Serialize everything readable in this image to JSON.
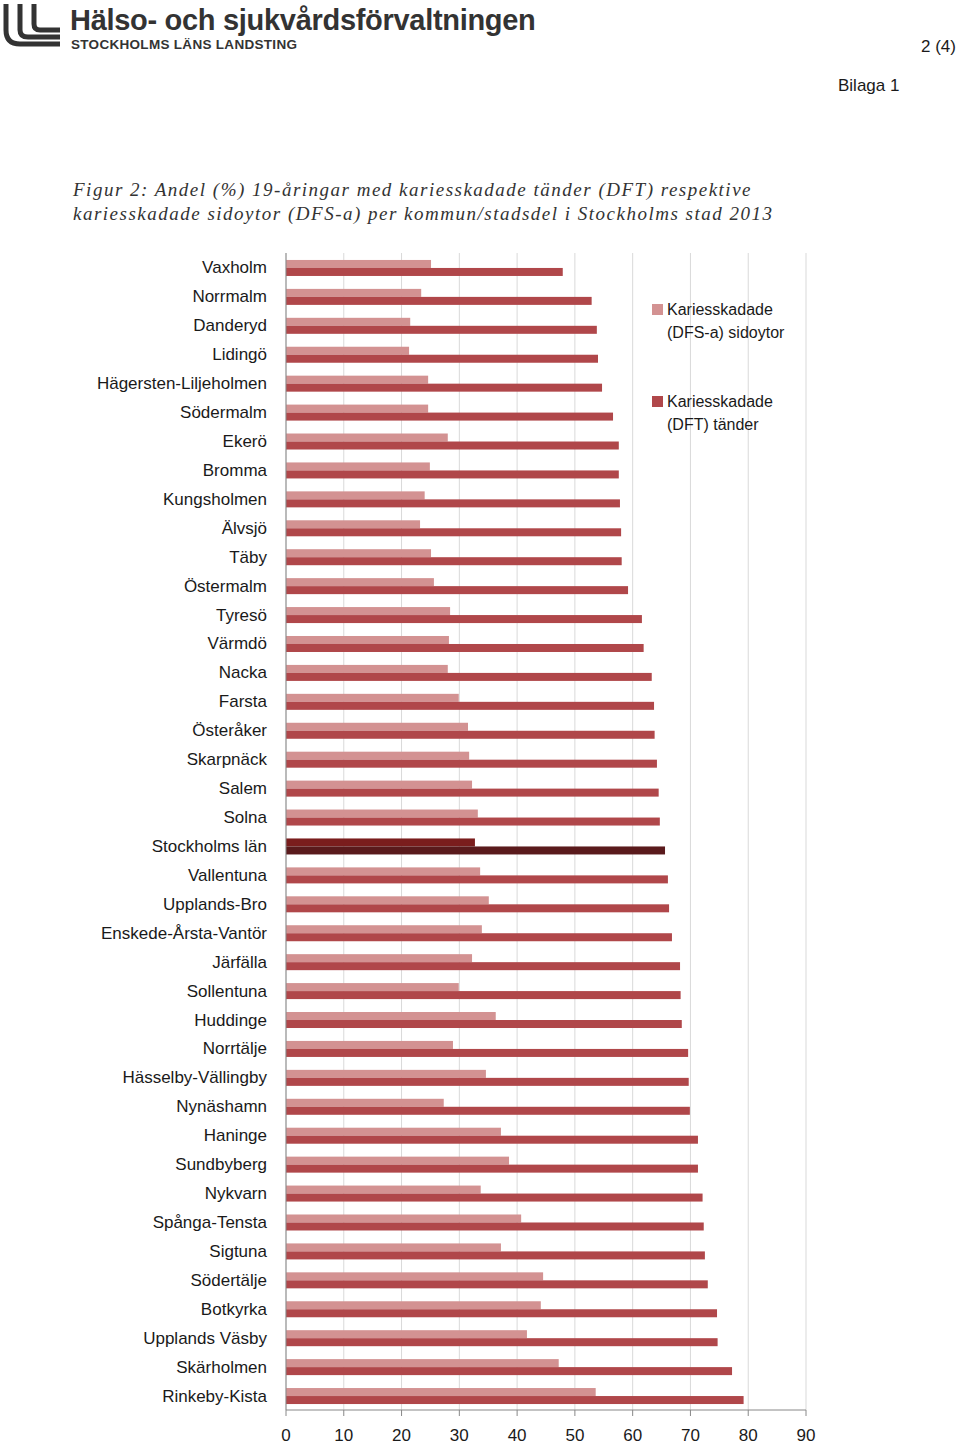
{
  "header": {
    "org": "Hälso- och sjukvårdsförvaltningen",
    "sub": "STOCKHOLMS LÄNS LANDSTING",
    "page": "2 (4)",
    "appendix": "Bilaga 1"
  },
  "chart_data": {
    "type": "bar",
    "orientation": "horizontal",
    "title": "Figur 2: Andel (%) 19-åringar med kariesskadade tänder (DFT) respektive kariesskadade sidoytor (DFS-a) per kommun/stadsdel i Stockholms stad 2013",
    "categories": [
      "Vaxholm",
      "Norrmalm",
      "Danderyd",
      "Lidingö",
      "Hägersten-Liljeholmen",
      "Södermalm",
      "Ekerö",
      "Bromma",
      "Kungsholmen",
      "Älvsjö",
      "Täby",
      "Östermalm",
      "Tyresö",
      "Värmdö",
      "Nacka",
      "Farsta",
      "Österåker",
      "Skarpnäck",
      "Salem",
      "Solna",
      "Stockholms län",
      "Vallentuna",
      "Upplands-Bro",
      "Enskede-Årsta-Vantör",
      "Järfälla",
      "Sollentuna",
      "Huddinge",
      "Norrtälje",
      "Hässelby-Vällingby",
      "Nynäshamn",
      "Haninge",
      "Sundbyberg",
      "Nykvarn",
      "Spånga-Tensta",
      "Sigtuna",
      "Södertälje",
      "Botkyrka",
      "Upplands Väsby",
      "Skärholmen",
      "Rinkeby-Kista"
    ],
    "series": [
      {
        "name": "Kariesskadade (DFS-a) sidoytor",
        "color": "#d39292",
        "colors": [
          "#d39292",
          "#d39292",
          "#d39292",
          "#d39292",
          "#d39292",
          "#d39292",
          "#d39292",
          "#d39292",
          "#d39292",
          "#d39292",
          "#d39292",
          "#d39292",
          "#d39292",
          "#d39292",
          "#d39292",
          "#d39292",
          "#d39292",
          "#d39292",
          "#d39292",
          "#d39292",
          "#7a1d1d",
          "#d39292",
          "#d39292",
          "#d39292",
          "#d39292",
          "#d39292",
          "#d39292",
          "#d39292",
          "#d39292",
          "#d39292",
          "#d39292",
          "#d39292",
          "#d39292",
          "#d39292",
          "#d39292",
          "#d39292",
          "#d39292",
          "#d39292",
          "#d39292",
          "#d39292"
        ],
        "values": [
          25.1,
          23.4,
          21.5,
          21.3,
          24.6,
          24.6,
          28.0,
          24.9,
          24.0,
          23.2,
          25.1,
          25.6,
          28.4,
          28.2,
          28.0,
          29.9,
          31.5,
          31.7,
          32.2,
          33.2,
          32.7,
          33.6,
          35.1,
          33.9,
          32.2,
          29.9,
          36.3,
          28.9,
          34.6,
          27.3,
          37.2,
          38.6,
          33.7,
          40.7,
          37.2,
          44.5,
          44.1,
          41.7,
          47.2,
          53.6
        ]
      },
      {
        "name": "Kariesskadade (DFT) tänder",
        "color": "#b0474a",
        "colors": [
          "#b0474a",
          "#b0474a",
          "#b0474a",
          "#b0474a",
          "#b0474a",
          "#b0474a",
          "#b0474a",
          "#b0474a",
          "#b0474a",
          "#b0474a",
          "#b0474a",
          "#b0474a",
          "#b0474a",
          "#b0474a",
          "#b0474a",
          "#b0474a",
          "#b0474a",
          "#b0474a",
          "#b0474a",
          "#b0474a",
          "#5a1a1c",
          "#b0474a",
          "#b0474a",
          "#b0474a",
          "#b0474a",
          "#b0474a",
          "#b0474a",
          "#b0474a",
          "#b0474a",
          "#b0474a",
          "#b0474a",
          "#b0474a",
          "#b0474a",
          "#b0474a",
          "#b0474a",
          "#b0474a",
          "#b0474a",
          "#b0474a",
          "#b0474a",
          "#b0474a"
        ],
        "values": [
          47.9,
          52.9,
          53.8,
          54.0,
          54.7,
          56.6,
          57.6,
          57.6,
          57.8,
          58.0,
          58.1,
          59.2,
          61.6,
          61.9,
          63.3,
          63.7,
          63.8,
          64.2,
          64.5,
          64.7,
          65.6,
          66.1,
          66.3,
          66.8,
          68.2,
          68.3,
          68.5,
          69.6,
          69.7,
          69.9,
          71.3,
          71.3,
          72.1,
          72.3,
          72.5,
          73.0,
          74.6,
          74.7,
          77.2,
          79.2
        ]
      }
    ],
    "xlim": [
      0,
      90
    ],
    "xticks": [
      0,
      10,
      20,
      30,
      40,
      50,
      60,
      70,
      80,
      90
    ],
    "grid": true,
    "legend": "top-right"
  }
}
